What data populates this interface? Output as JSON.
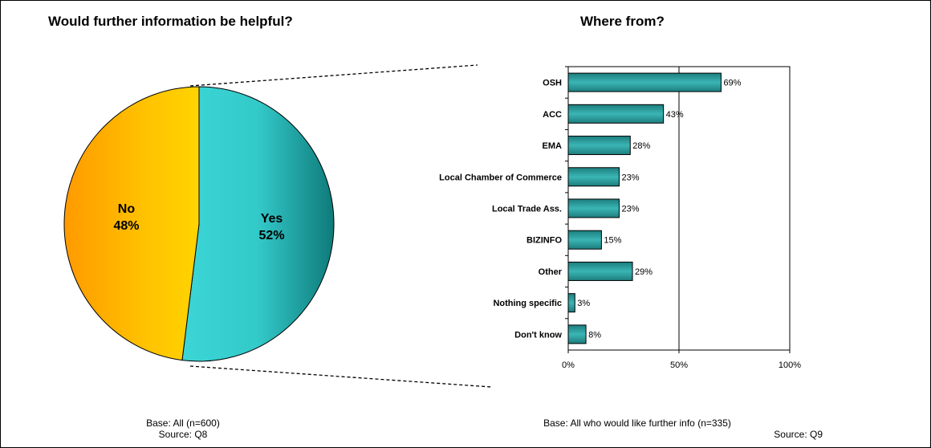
{
  "chart_data": [
    {
      "type": "pie",
      "title": "Would further information be helpful?",
      "slices": [
        {
          "label": "Yes",
          "value": 52,
          "value_label": "52%",
          "color": "#2aa6a6"
        },
        {
          "label": "No",
          "value": 48,
          "value_label": "48%",
          "color": "#ffb000"
        }
      ],
      "footnote": {
        "base": "Base: All (n=600)",
        "source": "Source: Q8"
      }
    },
    {
      "type": "bar",
      "orientation": "horizontal",
      "title": "Where from?",
      "categories": [
        "OSH",
        "ACC",
        "EMA",
        "Local Chamber of Commerce",
        "Local Trade Ass.",
        "BIZINFO",
        "Other",
        "Nothing specific",
        "Don't know"
      ],
      "values": [
        69,
        43,
        28,
        23,
        23,
        15,
        29,
        3,
        8
      ],
      "value_labels": [
        "69%",
        "43%",
        "28%",
        "23%",
        "23%",
        "15%",
        "29%",
        "3%",
        "8%"
      ],
      "xlim": [
        0,
        100
      ],
      "xticks": [
        0,
        50,
        100
      ],
      "xtick_labels": [
        "0%",
        "50%",
        "100%"
      ],
      "grid": true,
      "bar_color": "#2a9a9a",
      "footnote": {
        "base": "Base: All who would like further info (n=335)",
        "source": "Source: Q9"
      }
    }
  ]
}
